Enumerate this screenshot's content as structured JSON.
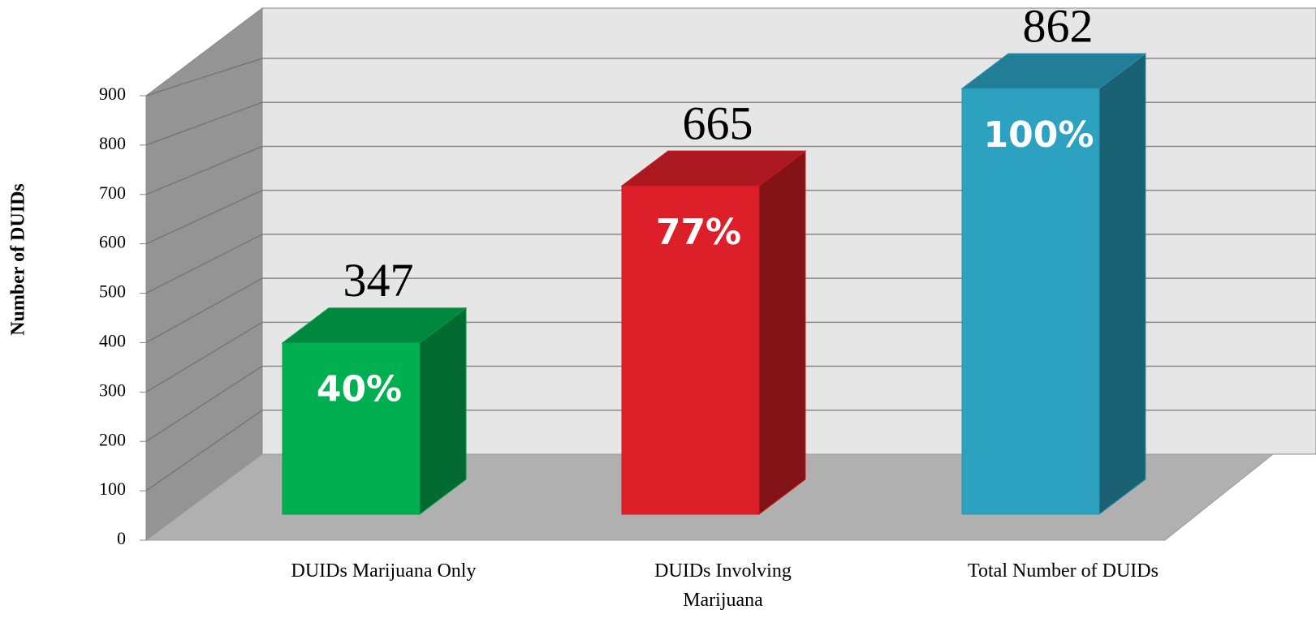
{
  "chart_data": {
    "type": "bar3d",
    "y_axis_label": "Number of DUIDs",
    "categories": [
      "DUIDs Marijuana Only",
      "DUIDs Involving Marijuana",
      "Total Number of DUIDs"
    ],
    "values": [
      347,
      665,
      862
    ],
    "percentage_labels": [
      "40%",
      "77%",
      "100%"
    ],
    "colors": [
      "#00b050",
      "#dc1f28",
      "#2ca2c0"
    ],
    "ylim": [
      0,
      900
    ],
    "yticks": [
      0,
      100,
      200,
      300,
      400,
      500,
      600,
      700,
      800,
      900
    ],
    "grid": true
  }
}
